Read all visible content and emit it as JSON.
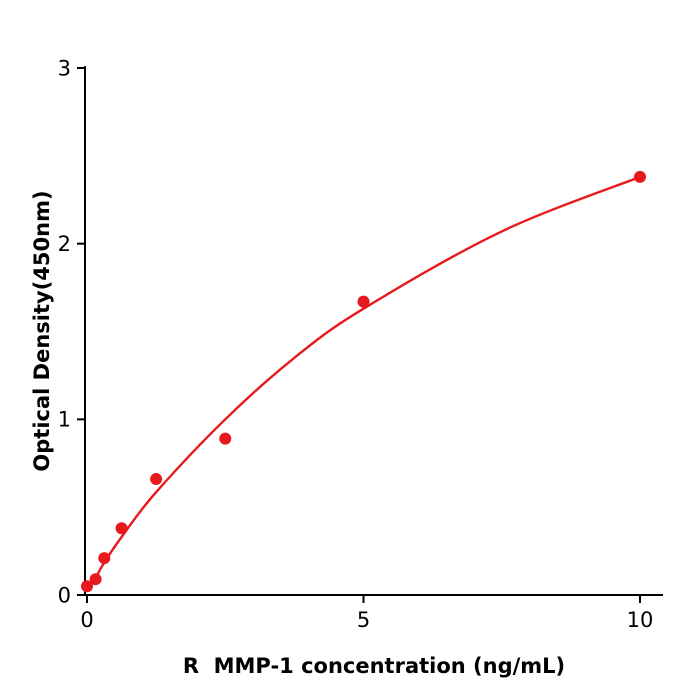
{
  "page": {
    "background": "#ffffff"
  },
  "chart_data": {
    "type": "scatter",
    "title": "",
    "xlabel": "R  MMP-1 concentration (ng/mL)",
    "ylabel": "Optical Density(450nm)",
    "xlim": [
      0,
      10.4
    ],
    "ylim": [
      0,
      3
    ],
    "x_ticks": [
      0,
      5,
      10
    ],
    "y_ticks": [
      0,
      1,
      2,
      3
    ],
    "grid": false,
    "legend": "none",
    "point_color": "#e8191c",
    "curve_color": "#e8191c",
    "axis_color": "#000000",
    "points": {
      "x": [
        0.0,
        0.156,
        0.313,
        0.625,
        1.25,
        2.5,
        5,
        10
      ],
      "y": [
        0.05,
        0.09,
        0.21,
        0.38,
        0.66,
        0.89,
        1.67,
        2.38
      ]
    },
    "fit_curve": {
      "description": "saturating regression curve through standards",
      "anchors": [
        [
          0,
          0.03
        ],
        [
          0.156,
          0.1
        ],
        [
          0.313,
          0.185
        ],
        [
          0.625,
          0.33
        ],
        [
          1.25,
          0.585
        ],
        [
          2.5,
          1.0
        ],
        [
          3.75,
          1.35
        ],
        [
          5,
          1.63
        ],
        [
          7.5,
          2.07
        ],
        [
          10,
          2.38
        ]
      ]
    }
  }
}
